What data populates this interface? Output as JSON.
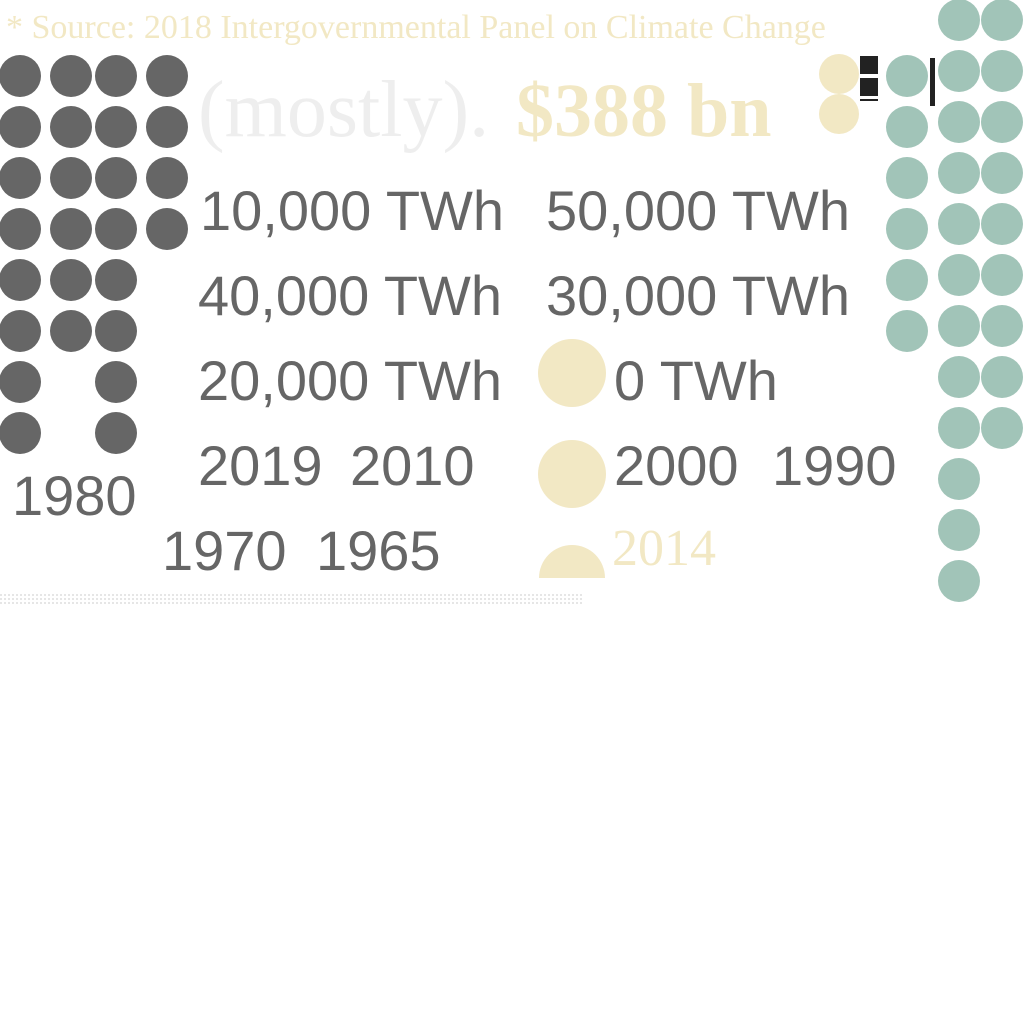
{
  "colors": {
    "gray": "#666666",
    "teal": "#a1c4b8",
    "cream": "#f2e8c4",
    "faint": "#eeeeee",
    "dark": "#222222"
  },
  "source_note": "* Source: 2018 Intergovernmental Panel on Climate Change",
  "headline_word": "(mostly).",
  "highlight_value": "$388 bn",
  "highlight_year": "2014",
  "chart_data": {
    "type": "table",
    "y_tick_labels": [
      "10,000 TWh",
      "50,000 TWh",
      "40,000 TWh",
      "30,000 TWh",
      "20,000 TWh",
      "0 TWh"
    ],
    "x_tick_labels": [
      "2019",
      "2010",
      "2000",
      "1990",
      "1980",
      "1970",
      "1965"
    ],
    "dot_columns": [
      {
        "color": "gray",
        "dots": 8
      },
      {
        "color": "gray",
        "dots": 6
      },
      {
        "color": "gray",
        "dots": 8
      },
      {
        "color": "gray",
        "dots": 4
      },
      {
        "color": "teal",
        "dots": 6
      },
      {
        "color": "teal",
        "dots": 12
      },
      {
        "color": "teal",
        "dots": 9
      }
    ],
    "cream_markers": 5
  }
}
